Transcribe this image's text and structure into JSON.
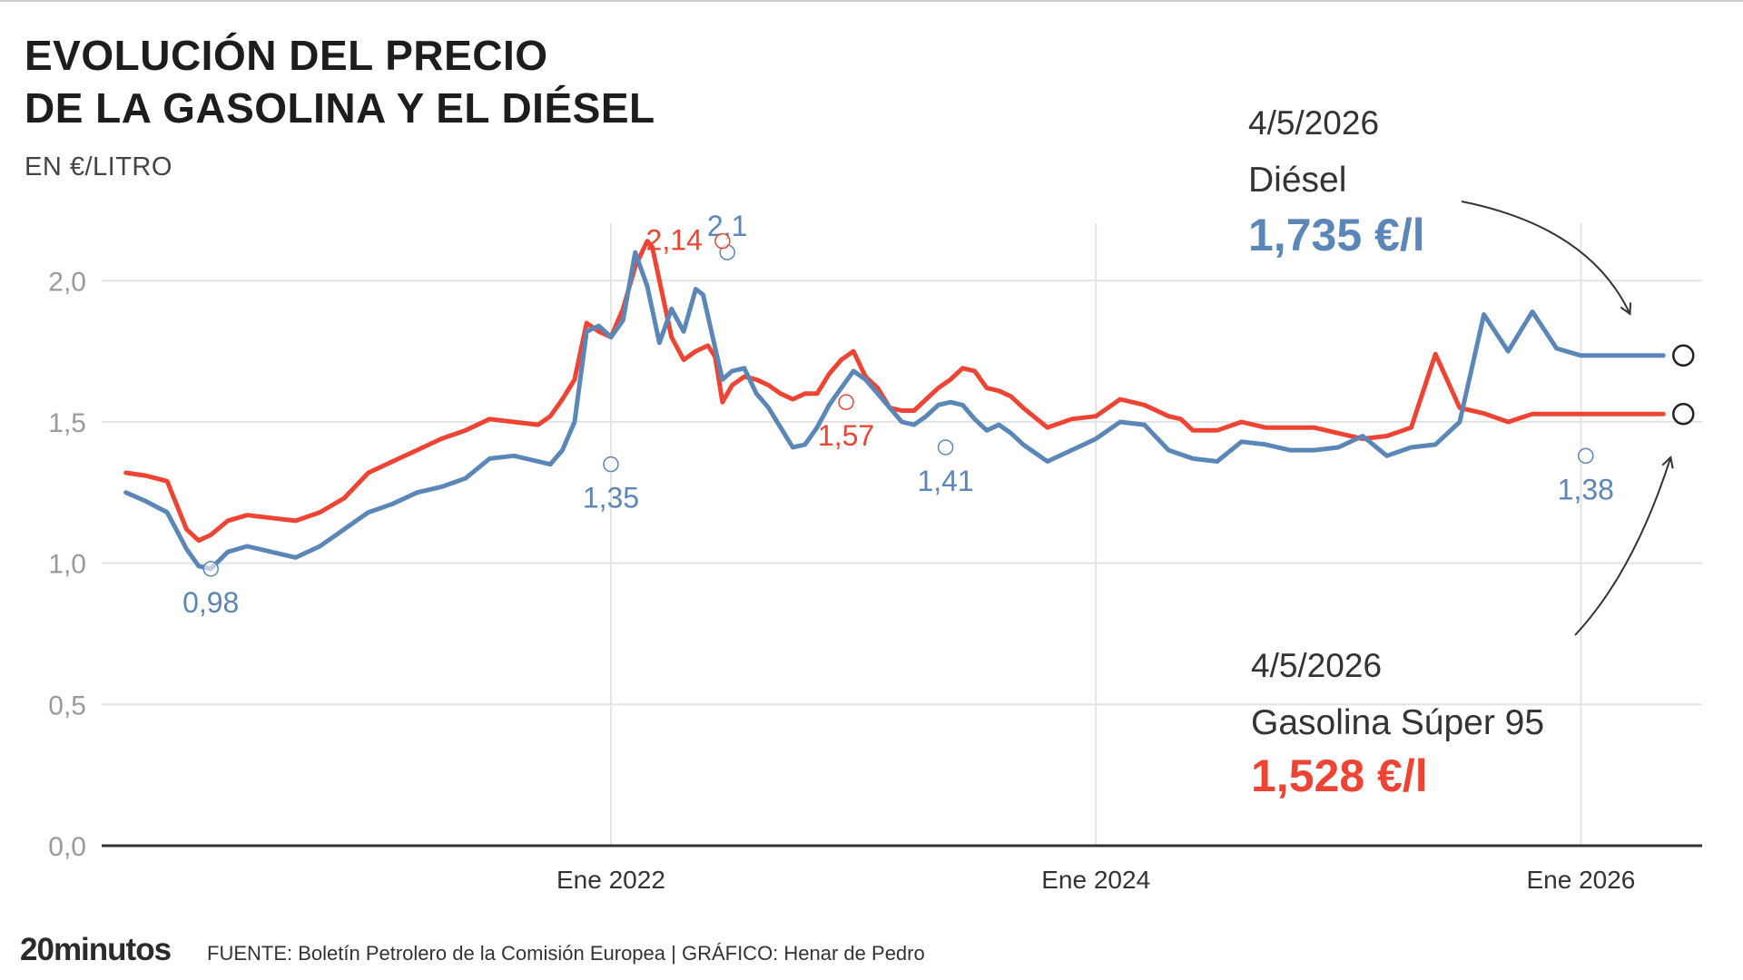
{
  "title_line1": "EVOLUCIÓN DEL PRECIO",
  "title_line2": "DE LA GASOLINA Y EL DIÉSEL",
  "subtitle": "EN €/LITRO",
  "annotations": {
    "diesel": {
      "date": "4/5/2026",
      "name": "Diésel",
      "value": "1,735 €/l"
    },
    "gasolina": {
      "date": "4/5/2026",
      "name": "Gasolina Súper 95",
      "value": "1,528 €/l"
    }
  },
  "footer": {
    "logo_bold": "20",
    "logo_rest": "minutos",
    "source": "FUENTE: Boletín Petrolero de la Comisión Europea  |  GRÁFICO: Henar de Pedro"
  },
  "colors": {
    "diesel": "#5b86b8",
    "gasolina": "#ef4433",
    "grid": "#e4e4e4",
    "axis": "#333333"
  },
  "chart_data": {
    "type": "line",
    "x_unit": "year",
    "xlim": [
      2019.9,
      2026.5
    ],
    "ylim": [
      0,
      2.2
    ],
    "yticks": [
      {
        "value": 0.0,
        "label": "0,0"
      },
      {
        "value": 0.5,
        "label": "0,5"
      },
      {
        "value": 1.0,
        "label": "1,0"
      },
      {
        "value": 1.5,
        "label": "1,5"
      },
      {
        "value": 2.0,
        "label": "2,0"
      }
    ],
    "xticks": [
      {
        "value": 2022.0,
        "label": "Ene 2022"
      },
      {
        "value": 2024.0,
        "label": "Ene 2024"
      },
      {
        "value": 2026.0,
        "label": "Ene 2026"
      }
    ],
    "grid": true,
    "series": [
      {
        "key": "gasolina",
        "x": [
          2020.0,
          2020.08,
          2020.17,
          2020.25,
          2020.3,
          2020.35,
          2020.42,
          2020.5,
          2020.6,
          2020.7,
          2020.8,
          2020.9,
          2021.0,
          2021.1,
          2021.2,
          2021.3,
          2021.4,
          2021.5,
          2021.6,
          2021.7,
          2021.75,
          2021.8,
          2021.85,
          2021.9,
          2021.95,
          2022.0,
          2022.05,
          2022.1,
          2022.15,
          2022.17,
          2022.2,
          2022.25,
          2022.3,
          2022.35,
          2022.4,
          2022.43,
          2022.46,
          2022.5,
          2022.55,
          2022.6,
          2022.65,
          2022.7,
          2022.75,
          2022.8,
          2022.85,
          2022.9,
          2022.95,
          2023.0,
          2023.05,
          2023.1,
          2023.15,
          2023.2,
          2023.25,
          2023.3,
          2023.35,
          2023.4,
          2023.45,
          2023.5,
          2023.55,
          2023.6,
          2023.65,
          2023.7,
          2023.8,
          2023.9,
          2024.0,
          2024.1,
          2024.2,
          2024.3,
          2024.35,
          2024.4,
          2024.5,
          2024.6,
          2024.7,
          2024.8,
          2024.9,
          2025.0,
          2025.1,
          2025.2,
          2025.3,
          2025.4,
          2025.5,
          2025.6,
          2025.7,
          2025.8,
          2025.9,
          2026.0,
          2026.1,
          2026.15,
          2026.2,
          2026.25,
          2026.3,
          2026.34
        ],
        "y": [
          1.32,
          1.31,
          1.29,
          1.12,
          1.08,
          1.1,
          1.15,
          1.17,
          1.16,
          1.15,
          1.18,
          1.23,
          1.32,
          1.36,
          1.4,
          1.44,
          1.47,
          1.51,
          1.5,
          1.49,
          1.52,
          1.58,
          1.65,
          1.85,
          1.82,
          1.8,
          1.9,
          2.05,
          2.14,
          2.12,
          2.0,
          1.8,
          1.72,
          1.75,
          1.77,
          1.73,
          1.57,
          1.63,
          1.66,
          1.65,
          1.63,
          1.6,
          1.58,
          1.6,
          1.6,
          1.67,
          1.72,
          1.75,
          1.66,
          1.62,
          1.55,
          1.54,
          1.54,
          1.58,
          1.62,
          1.65,
          1.69,
          1.68,
          1.62,
          1.61,
          1.59,
          1.55,
          1.48,
          1.51,
          1.52,
          1.58,
          1.56,
          1.52,
          1.51,
          1.47,
          1.47,
          1.5,
          1.48,
          1.48,
          1.48,
          1.46,
          1.44,
          1.45,
          1.48,
          1.74,
          1.55,
          1.53,
          1.5,
          1.528,
          1.528,
          1.528,
          1.528,
          1.528,
          1.528,
          1.528,
          1.528,
          1.528
        ]
      },
      {
        "key": "diesel",
        "x": [
          2020.0,
          2020.08,
          2020.17,
          2020.25,
          2020.3,
          2020.35,
          2020.42,
          2020.5,
          2020.6,
          2020.7,
          2020.8,
          2020.9,
          2021.0,
          2021.1,
          2021.2,
          2021.3,
          2021.4,
          2021.5,
          2021.6,
          2021.7,
          2021.75,
          2021.8,
          2021.85,
          2021.9,
          2021.95,
          2022.0,
          2022.05,
          2022.1,
          2022.15,
          2022.2,
          2022.25,
          2022.3,
          2022.35,
          2022.38,
          2022.42,
          2022.46,
          2022.5,
          2022.55,
          2022.6,
          2022.65,
          2022.7,
          2022.75,
          2022.8,
          2022.85,
          2022.9,
          2022.95,
          2023.0,
          2023.05,
          2023.1,
          2023.15,
          2023.2,
          2023.25,
          2023.3,
          2023.35,
          2023.4,
          2023.45,
          2023.5,
          2023.55,
          2023.6,
          2023.65,
          2023.7,
          2023.8,
          2023.9,
          2024.0,
          2024.1,
          2024.2,
          2024.3,
          2024.4,
          2024.5,
          2024.6,
          2024.7,
          2024.8,
          2024.9,
          2025.0,
          2025.1,
          2025.2,
          2025.3,
          2025.4,
          2025.5,
          2025.6,
          2025.7,
          2025.8,
          2025.9,
          2026.0,
          2026.05,
          2026.1,
          2026.12,
          2026.15,
          2026.18,
          2026.2,
          2026.22,
          2026.25,
          2026.28,
          2026.31,
          2026.34
        ],
        "y": [
          1.25,
          1.22,
          1.18,
          1.05,
          0.99,
          0.98,
          1.04,
          1.06,
          1.04,
          1.02,
          1.06,
          1.12,
          1.18,
          1.21,
          1.25,
          1.27,
          1.3,
          1.37,
          1.38,
          1.36,
          1.35,
          1.4,
          1.5,
          1.82,
          1.84,
          1.8,
          1.86,
          2.1,
          1.98,
          1.78,
          1.9,
          1.82,
          1.97,
          1.95,
          1.8,
          1.65,
          1.68,
          1.69,
          1.6,
          1.55,
          1.48,
          1.41,
          1.42,
          1.48,
          1.56,
          1.62,
          1.68,
          1.65,
          1.6,
          1.55,
          1.5,
          1.49,
          1.52,
          1.56,
          1.57,
          1.56,
          1.51,
          1.47,
          1.49,
          1.46,
          1.42,
          1.36,
          1.4,
          1.44,
          1.5,
          1.49,
          1.4,
          1.37,
          1.36,
          1.43,
          1.42,
          1.4,
          1.4,
          1.41,
          1.45,
          1.38,
          1.41,
          1.42,
          1.5,
          1.88,
          1.75,
          1.89,
          1.76,
          1.735,
          1.735,
          1.735,
          1.735,
          1.735,
          1.735,
          1.735,
          1.735,
          1.735,
          1.735,
          1.735,
          1.735
        ]
      }
    ],
    "callouts": [
      {
        "series": "diesel",
        "x": 2020.35,
        "y": 0.98,
        "label": "0,98",
        "pos": "below"
      },
      {
        "series": "diesel",
        "x": 2022.0,
        "y": 1.35,
        "label": "1,35",
        "pos": "below"
      },
      {
        "series": "diesel",
        "x": 2022.48,
        "y": 2.1,
        "label": "2,1",
        "pos": "above"
      },
      {
        "series": "diesel",
        "x": 2023.38,
        "y": 1.41,
        "label": "1,41",
        "pos": "below"
      },
      {
        "series": "diesel",
        "x": 2026.02,
        "y": 1.38,
        "label": "1,38",
        "pos": "below"
      },
      {
        "series": "gasolina",
        "x": 2022.46,
        "y": 2.14,
        "label": "2,14",
        "pos": "left"
      },
      {
        "series": "gasolina",
        "x": 2022.97,
        "y": 1.57,
        "label": "1,57",
        "pos": "below"
      }
    ]
  }
}
